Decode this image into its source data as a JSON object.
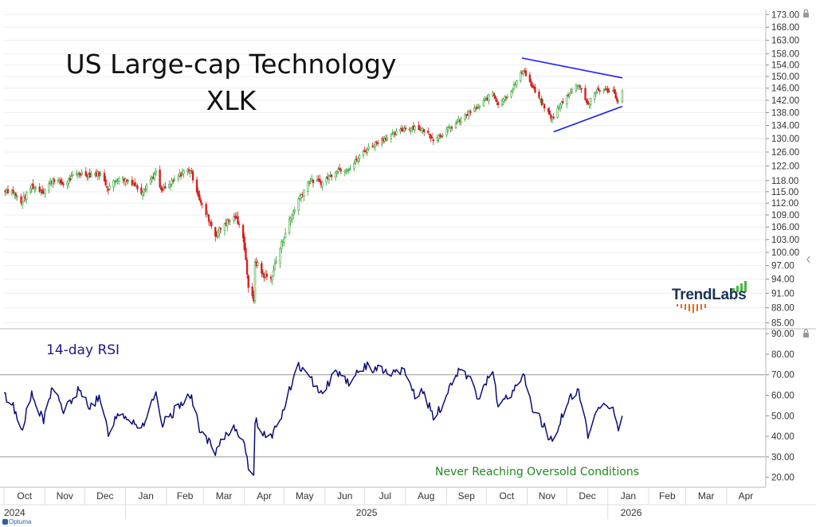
{
  "title_line1": "US Large-cap Technology",
  "title_line2": "XLK",
  "rsi_label": "14-day RSI",
  "rsi_note": "Never Reaching Oversold Conditions",
  "logo_text": "TrendLabs",
  "footer_brand": "Optuma",
  "colors": {
    "up_candle": "#2ea32e",
    "down_candle": "#d42020",
    "rsi_line": "#0d0d7a",
    "trendline": "#1a1aff",
    "grid": "#cccccc",
    "logo_dark": "#1c3354",
    "logo_green": "#4bb543",
    "logo_orange": "#e8661e"
  },
  "chart_data": [
    {
      "type": "candlestick",
      "name": "XLK",
      "y_ticks": [
        "173.00",
        "168.00",
        "163.00",
        "158.00",
        "154.00",
        "150.00",
        "146.00",
        "142.00",
        "138.00",
        "134.00",
        "130.00",
        "126.00",
        "122.00",
        "118.00",
        "115.00",
        "112.00",
        "109.00",
        "106.00",
        "103.00",
        "100.00",
        "97.00",
        "94.00",
        "91.00",
        "88.00",
        "85.00"
      ],
      "ylim": [
        84,
        175
      ],
      "y_scale": "log",
      "anchors": [
        [
          "2024-10-01",
          115.5
        ],
        [
          "2024-10-08",
          115.0
        ],
        [
          "2024-10-14",
          112.0
        ],
        [
          "2024-10-22",
          116.5
        ],
        [
          "2024-10-31",
          115.0
        ],
        [
          "2024-11-07",
          118.5
        ],
        [
          "2024-11-15",
          117.0
        ],
        [
          "2024-11-26",
          120.0
        ],
        [
          "2024-12-05",
          119.5
        ],
        [
          "2024-12-12",
          120.0
        ],
        [
          "2024-12-19",
          116.0
        ],
        [
          "2024-12-27",
          119.0
        ],
        [
          "2025-01-06",
          117.5
        ],
        [
          "2025-01-13",
          115.0
        ],
        [
          "2025-01-24",
          120.0
        ],
        [
          "2025-01-28",
          115.0
        ],
        [
          "2025-02-04",
          117.0
        ],
        [
          "2025-02-14",
          120.5
        ],
        [
          "2025-02-19",
          121.0
        ],
        [
          "2025-02-27",
          112.0
        ],
        [
          "2025-03-05",
          108.0
        ],
        [
          "2025-03-10",
          104.0
        ],
        [
          "2025-03-17",
          107.0
        ],
        [
          "2025-03-25",
          108.5
        ],
        [
          "2025-03-31",
          104.0
        ],
        [
          "2025-04-04",
          92.5
        ],
        [
          "2025-04-08",
          89.0
        ],
        [
          "2025-04-09",
          98.0
        ],
        [
          "2025-04-15",
          95.0
        ],
        [
          "2025-04-21",
          94.0
        ],
        [
          "2025-04-28",
          101.0
        ],
        [
          "2025-05-05",
          107.5
        ],
        [
          "2025-05-12",
          113.0
        ],
        [
          "2025-05-20",
          118.0
        ],
        [
          "2025-05-30",
          117.5
        ],
        [
          "2025-06-10",
          121.0
        ],
        [
          "2025-06-20",
          121.5
        ],
        [
          "2025-06-30",
          126.0
        ],
        [
          "2025-07-10",
          129.0
        ],
        [
          "2025-07-22",
          131.0
        ],
        [
          "2025-07-31",
          133.0
        ],
        [
          "2025-08-08",
          133.5
        ],
        [
          "2025-08-15",
          132.5
        ],
        [
          "2025-08-22",
          130.0
        ],
        [
          "2025-08-29",
          131.5
        ],
        [
          "2025-09-08",
          134.5
        ],
        [
          "2025-09-18",
          138.0
        ],
        [
          "2025-09-26",
          140.0
        ],
        [
          "2025-10-06",
          144.5
        ],
        [
          "2025-10-10",
          141.0
        ],
        [
          "2025-10-20",
          145.0
        ],
        [
          "2025-10-29",
          152.5
        ],
        [
          "2025-11-04",
          147.0
        ],
        [
          "2025-11-12",
          141.0
        ],
        [
          "2025-11-20",
          136.0
        ],
        [
          "2025-11-26",
          140.5
        ],
        [
          "2025-12-03",
          144.5
        ],
        [
          "2025-12-10",
          147.5
        ],
        [
          "2025-12-17",
          140.5
        ],
        [
          "2025-12-24",
          145.5
        ],
        [
          "2026-01-05",
          145.0
        ],
        [
          "2026-01-09",
          141.5
        ],
        [
          "2026-01-12",
          145.0
        ]
      ],
      "trendlines": [
        {
          "from": [
            "2025-10-28",
            156.5
          ],
          "to": [
            "2026-01-12",
            149.5
          ]
        },
        {
          "from": [
            "2025-11-21",
            132.0
          ],
          "to": [
            "2026-01-12",
            140.0
          ]
        }
      ]
    },
    {
      "type": "line",
      "name": "14-day RSI",
      "y_ticks": [
        "90.00",
        "80.00",
        "70.00",
        "60.00",
        "50.00",
        "40.00",
        "30.00",
        "20.00"
      ],
      "ylim": [
        16,
        92
      ],
      "reference_lines": [
        70,
        30
      ],
      "anchors": [
        [
          "2024-10-01",
          60
        ],
        [
          "2024-10-08",
          55
        ],
        [
          "2024-10-14",
          43
        ],
        [
          "2024-10-22",
          60
        ],
        [
          "2024-10-31",
          47
        ],
        [
          "2024-11-07",
          65
        ],
        [
          "2024-11-15",
          52
        ],
        [
          "2024-11-26",
          62
        ],
        [
          "2024-12-05",
          55
        ],
        [
          "2024-12-12",
          58
        ],
        [
          "2024-12-19",
          42
        ],
        [
          "2024-12-27",
          52
        ],
        [
          "2025-01-06",
          48
        ],
        [
          "2025-01-13",
          44
        ],
        [
          "2025-01-24",
          60
        ],
        [
          "2025-01-28",
          45
        ],
        [
          "2025-02-04",
          50
        ],
        [
          "2025-02-14",
          58
        ],
        [
          "2025-02-19",
          60
        ],
        [
          "2025-02-27",
          42
        ],
        [
          "2025-03-05",
          37
        ],
        [
          "2025-03-10",
          31
        ],
        [
          "2025-03-17",
          40
        ],
        [
          "2025-03-25",
          45
        ],
        [
          "2025-03-31",
          38
        ],
        [
          "2025-04-04",
          24
        ],
        [
          "2025-04-08",
          23
        ],
        [
          "2025-04-09",
          48
        ],
        [
          "2025-04-15",
          42
        ],
        [
          "2025-04-21",
          40
        ],
        [
          "2025-04-28",
          48
        ],
        [
          "2025-05-05",
          62
        ],
        [
          "2025-05-12",
          75
        ],
        [
          "2025-05-20",
          68
        ],
        [
          "2025-05-30",
          62
        ],
        [
          "2025-06-10",
          72
        ],
        [
          "2025-06-20",
          66
        ],
        [
          "2025-06-30",
          74
        ],
        [
          "2025-07-10",
          73
        ],
        [
          "2025-07-22",
          70
        ],
        [
          "2025-07-31",
          72
        ],
        [
          "2025-08-08",
          60
        ],
        [
          "2025-08-15",
          62
        ],
        [
          "2025-08-22",
          48
        ],
        [
          "2025-08-29",
          55
        ],
        [
          "2025-09-08",
          72
        ],
        [
          "2025-09-18",
          68
        ],
        [
          "2025-09-26",
          58
        ],
        [
          "2025-10-06",
          74
        ],
        [
          "2025-10-10",
          55
        ],
        [
          "2025-10-20",
          60
        ],
        [
          "2025-10-29",
          71
        ],
        [
          "2025-11-04",
          55
        ],
        [
          "2025-11-12",
          47
        ],
        [
          "2025-11-20",
          37
        ],
        [
          "2025-11-26",
          48
        ],
        [
          "2025-12-03",
          58
        ],
        [
          "2025-12-10",
          62
        ],
        [
          "2025-12-17",
          40
        ],
        [
          "2025-12-24",
          54
        ],
        [
          "2026-01-05",
          56
        ],
        [
          "2026-01-09",
          42
        ],
        [
          "2026-01-12",
          50
        ]
      ]
    }
  ],
  "x_axis": {
    "months": [
      "Oct",
      "Nov",
      "Dec",
      "Jan",
      "Feb",
      "Mar",
      "Apr",
      "May",
      "Jun",
      "Jul",
      "Aug",
      "Sep",
      "Oct",
      "Nov",
      "Dec",
      "Jan",
      "Feb",
      "Mar",
      "Apr"
    ],
    "years": [
      "2024",
      "2025",
      "2026"
    ],
    "range": [
      "2024-10-01",
      "2026-04-30"
    ]
  }
}
